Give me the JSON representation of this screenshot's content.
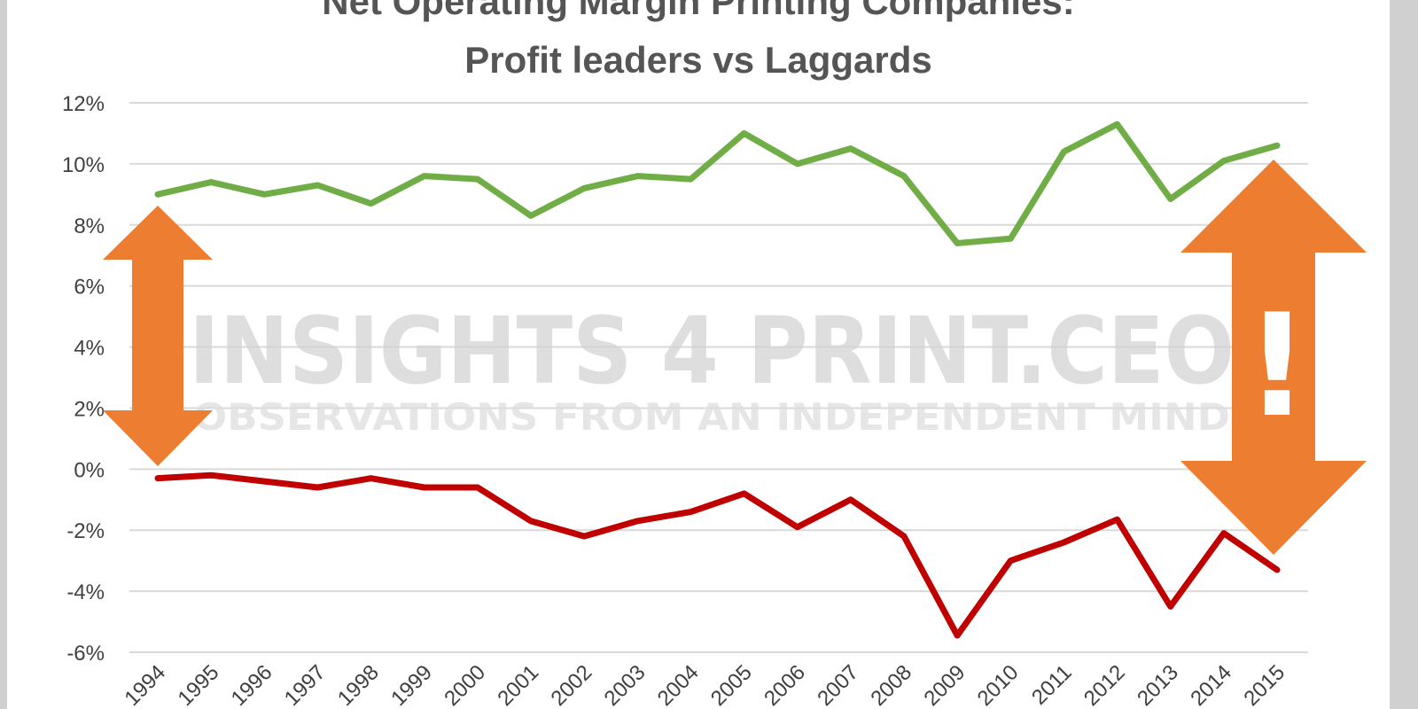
{
  "chart_data": {
    "type": "line",
    "title_line1": "Net Operating Margin Printing Companies:",
    "title_line2": "Profit leaders vs Laggards",
    "xlabel": "",
    "ylabel": "",
    "x": [
      "1994",
      "1995",
      "1996",
      "1997",
      "1998",
      "1999",
      "2000",
      "2001",
      "2002",
      "2003",
      "2004",
      "2005",
      "2006",
      "2007",
      "2008",
      "2009",
      "2010",
      "2011",
      "2012",
      "2013",
      "2014",
      "2015"
    ],
    "ylim": [
      -6,
      12
    ],
    "yticks": [
      12,
      10,
      8,
      6,
      4,
      2,
      0,
      -2,
      -4,
      -6
    ],
    "ytick_labels": [
      "12%",
      "10%",
      "8%",
      "6%",
      "4%",
      "2%",
      "0%",
      "-2%",
      "-4%",
      "-6%"
    ],
    "grid": true,
    "series": [
      {
        "color": "#70ad47",
        "values": [
          9.0,
          9.4,
          9.0,
          9.3,
          8.7,
          9.6,
          9.5,
          8.3,
          9.2,
          9.6,
          9.5,
          11.0,
          10.0,
          10.5,
          9.6,
          7.4,
          7.55,
          10.4,
          11.3,
          8.85,
          10.1,
          10.6
        ]
      },
      {
        "color": "#c00000",
        "values": [
          -0.3,
          -0.2,
          -0.4,
          -0.6,
          -0.3,
          -0.6,
          -0.6,
          -1.7,
          -2.2,
          -1.7,
          -1.4,
          -0.8,
          -1.9,
          -1.0,
          -2.2,
          -5.45,
          -3.0,
          -2.4,
          -1.65,
          -4.5,
          -2.1,
          -3.3
        ]
      }
    ],
    "annotations": {
      "arrow_color": "#ed7d31",
      "exclamation": "!"
    },
    "watermark": {
      "main": "INSIGHTS 4 PRINT.CEO",
      "sub": "OBSERVATIONS FROM AN INDEPENDENT MIND"
    }
  }
}
